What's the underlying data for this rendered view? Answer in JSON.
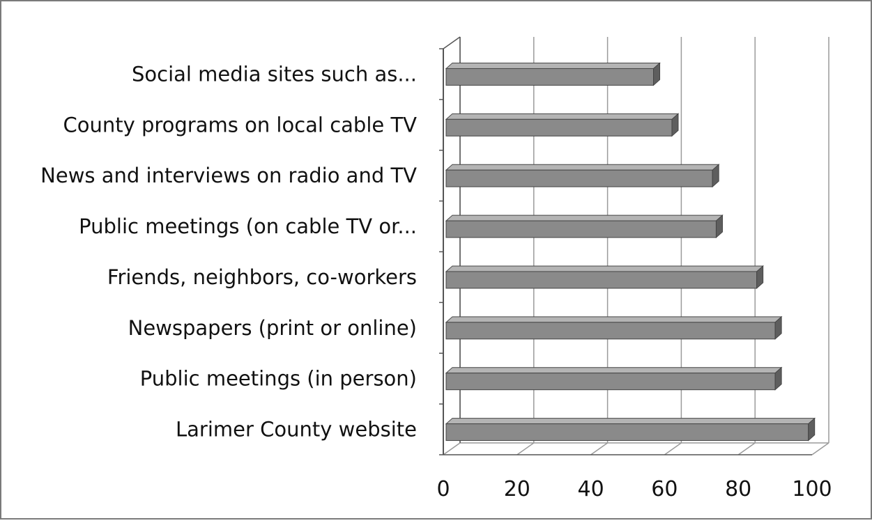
{
  "chart_data": {
    "type": "bar",
    "orientation": "horizontal",
    "style": "3d",
    "title": "",
    "xlabel": "",
    "ylabel": "",
    "categories": [
      "Social media sites such as...",
      "County programs on local cable TV",
      "News and interviews on radio and TV",
      "Public meetings (on cable TV or...",
      "Friends, neighbors, co-workers",
      "Newspapers (print or online)",
      "Public meetings (in person)",
      "Larimer County website"
    ],
    "values": [
      57,
      62,
      73,
      74,
      85,
      90,
      90,
      99
    ],
    "xlim": [
      0,
      100
    ],
    "ticks": [
      "0",
      "20",
      "40",
      "60",
      "80",
      "100"
    ],
    "grid": "vertical",
    "legend": "none",
    "colors": {
      "bar_front": "#8a8a8a",
      "bar_top": "#b4b4b4",
      "bar_end": "#5e5e5e",
      "gridline": "#9a9a9a",
      "axis": "#555555",
      "frame": "#7a7a7a"
    }
  }
}
